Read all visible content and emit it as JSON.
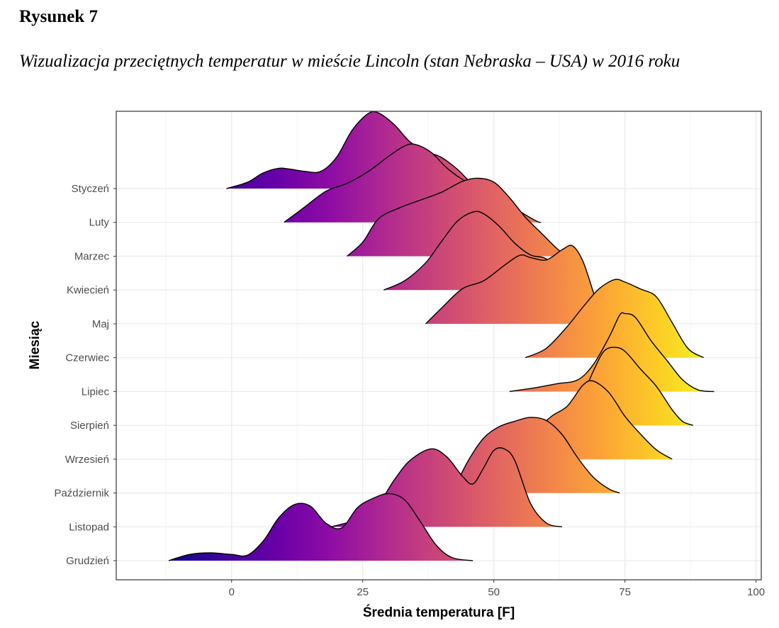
{
  "figure": {
    "label": "Rysunek 7",
    "caption": "Wizualizacja przeciętnych temperatur w mieście Lincoln (stan Nebraska – USA) w 2016 roku"
  },
  "chart_data": {
    "type": "ridgeline",
    "xlabel": "Średnia temperatura [F]",
    "ylabel": "Miesiąc",
    "xlim": [
      -22,
      101
    ],
    "xticks": [
      0,
      25,
      50,
      75,
      100
    ],
    "grid": true,
    "legend": "none",
    "colormap": "plasma",
    "color_range": [
      -12,
      92
    ],
    "series": [
      {
        "name": "Styczeń",
        "x": [
          -1,
          3,
          6,
          9,
          11,
          14,
          17,
          20,
          23,
          26,
          28,
          31,
          34,
          37,
          40,
          43,
          46,
          49
        ],
        "density": [
          0.0,
          0.08,
          0.2,
          0.26,
          0.25,
          0.22,
          0.22,
          0.4,
          0.75,
          0.96,
          0.97,
          0.82,
          0.6,
          0.48,
          0.4,
          0.25,
          0.06,
          0.0
        ]
      },
      {
        "name": "Luty",
        "x": [
          10,
          14,
          18,
          22,
          26,
          30,
          33,
          35,
          38,
          41,
          44,
          47,
          50,
          54,
          58,
          59
        ],
        "density": [
          0.0,
          0.2,
          0.4,
          0.5,
          0.65,
          0.85,
          0.98,
          1.0,
          0.9,
          0.7,
          0.55,
          0.45,
          0.35,
          0.18,
          0.02,
          0.0
        ]
      },
      {
        "name": "Marzec",
        "x": [
          22,
          25,
          28,
          32,
          36,
          40,
          44,
          47,
          50,
          53,
          56,
          59,
          62,
          64
        ],
        "density": [
          0.0,
          0.18,
          0.48,
          0.62,
          0.72,
          0.82,
          0.96,
          1.0,
          0.95,
          0.75,
          0.5,
          0.3,
          0.1,
          0.0
        ]
      },
      {
        "name": "Kwiecień",
        "x": [
          29,
          33,
          37,
          40,
          43,
          46,
          48,
          51,
          54,
          57,
          60,
          63,
          65
        ],
        "density": [
          0.0,
          0.12,
          0.35,
          0.62,
          0.88,
          1.0,
          0.98,
          0.82,
          0.6,
          0.45,
          0.4,
          0.2,
          0.0
        ]
      },
      {
        "name": "Maj",
        "x": [
          37,
          40,
          44,
          48,
          52,
          55,
          57,
          60,
          63,
          65,
          67,
          69,
          71
        ],
        "density": [
          0.0,
          0.2,
          0.45,
          0.55,
          0.75,
          0.88,
          0.85,
          0.82,
          0.95,
          1.0,
          0.8,
          0.4,
          0.0
        ]
      },
      {
        "name": "Czerwiec",
        "x": [
          56,
          60,
          64,
          67,
          70,
          73,
          75,
          78,
          81,
          84,
          87,
          90
        ],
        "density": [
          0.0,
          0.12,
          0.4,
          0.65,
          0.88,
          1.0,
          0.97,
          0.88,
          0.78,
          0.45,
          0.12,
          0.0
        ]
      },
      {
        "name": "Lipiec",
        "x": [
          53,
          58,
          62,
          66,
          69,
          72,
          74,
          75,
          77,
          80,
          83,
          86,
          89,
          92
        ],
        "density": [
          0.0,
          0.05,
          0.1,
          0.15,
          0.35,
          0.7,
          0.98,
          1.0,
          0.95,
          0.65,
          0.4,
          0.15,
          0.02,
          0.0
        ]
      },
      {
        "name": "Sierpień",
        "x": [
          63,
          66,
          69,
          71,
          73,
          75,
          78,
          81,
          84,
          86,
          88
        ],
        "density": [
          0.0,
          0.25,
          0.7,
          0.95,
          1.0,
          0.95,
          0.72,
          0.5,
          0.2,
          0.05,
          0.0
        ]
      },
      {
        "name": "Wrzesień",
        "x": [
          55,
          58,
          61,
          64,
          67,
          69,
          72,
          75,
          78,
          81,
          84
        ],
        "density": [
          0.0,
          0.35,
          0.55,
          0.68,
          0.95,
          1.0,
          0.85,
          0.55,
          0.32,
          0.12,
          0.0
        ]
      },
      {
        "name": "Październik",
        "x": [
          42,
          45,
          48,
          51,
          54,
          57,
          60,
          63,
          66,
          69,
          72,
          74
        ],
        "density": [
          0.0,
          0.4,
          0.7,
          0.85,
          0.92,
          0.97,
          0.93,
          0.75,
          0.45,
          0.2,
          0.05,
          0.0
        ]
      },
      {
        "name": "Listopad",
        "x": [
          19,
          24,
          28,
          31,
          34,
          38,
          41,
          44,
          46,
          48,
          50,
          52,
          54,
          57,
          60,
          63
        ],
        "density": [
          0.0,
          0.1,
          0.3,
          0.6,
          0.85,
          1.0,
          0.9,
          0.65,
          0.55,
          0.75,
          0.98,
          1.0,
          0.85,
          0.3,
          0.05,
          0.0
        ]
      },
      {
        "name": "Grudzień",
        "x": [
          -12,
          -8,
          -4,
          0,
          3,
          6,
          9,
          12,
          15,
          18,
          21,
          24,
          27,
          30,
          33,
          36,
          39,
          42,
          46
        ],
        "density": [
          0.0,
          0.08,
          0.1,
          0.08,
          0.07,
          0.25,
          0.55,
          0.72,
          0.7,
          0.48,
          0.42,
          0.68,
          0.8,
          0.86,
          0.78,
          0.5,
          0.2,
          0.04,
          0.0
        ]
      }
    ]
  }
}
